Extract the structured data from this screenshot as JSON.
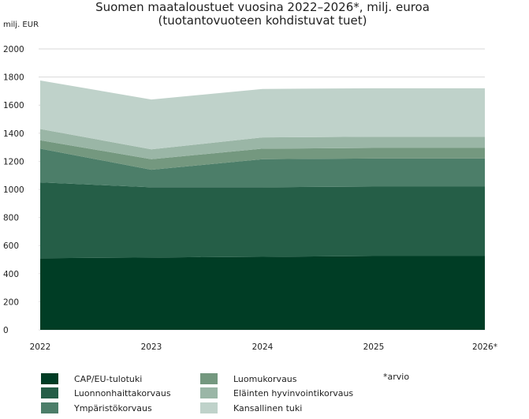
{
  "chart_data": {
    "type": "area",
    "stacked": true,
    "title": "Suomen maataloustuet vuosina 2022–2026*, milj. euroa",
    "subtitle": "(tuotantovuoteen kohdistuvat tuet)",
    "ylabel": "milj. EUR",
    "x": [
      "2022",
      "2023",
      "2024",
      "2025",
      "2026*"
    ],
    "ylim": [
      0,
      2000
    ],
    "yticks": [
      0,
      200,
      400,
      600,
      800,
      1000,
      1200,
      1400,
      1600,
      1800,
      2000
    ],
    "grid": true,
    "legend_position": "bottom",
    "note": "*arvio",
    "series": [
      {
        "name": "CAP/EU-tulotuki",
        "color": "#003d25",
        "values": [
          510,
          515,
          520,
          525,
          525
        ]
      },
      {
        "name": "Luonnonhaittakorvaus",
        "color": "#255e47",
        "values": [
          540,
          500,
          495,
          495,
          495
        ]
      },
      {
        "name": "Ympäristökorvaus",
        "color": "#4c7e69",
        "values": [
          240,
          125,
          200,
          200,
          200
        ]
      },
      {
        "name": "Luomukorvaus",
        "color": "#74987f",
        "values": [
          60,
          75,
          75,
          75,
          75
        ]
      },
      {
        "name": "Eläinten hyvinvointikorvaus",
        "color": "#9ab6a6",
        "values": [
          80,
          70,
          80,
          80,
          80
        ]
      },
      {
        "name": "Kansallinen tuki",
        "color": "#bfd2ca",
        "values": [
          345,
          355,
          345,
          345,
          345
        ]
      }
    ]
  }
}
